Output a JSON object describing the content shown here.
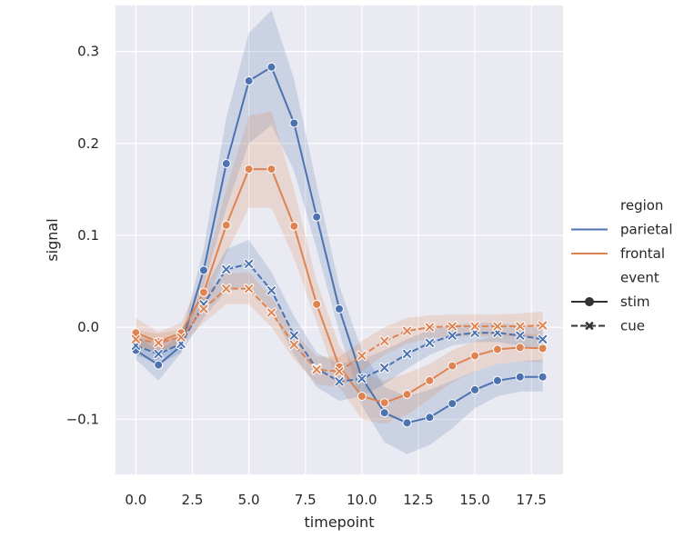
{
  "chart_data": {
    "type": "line",
    "title": "",
    "xlabel": "timepoint",
    "ylabel": "signal",
    "xlim": [
      -0.9,
      18.9
    ],
    "ylim": [
      -0.16,
      0.35
    ],
    "xticks": [
      0.0,
      2.5,
      5.0,
      7.5,
      10.0,
      12.5,
      15.0,
      17.5
    ],
    "xtick_labels": [
      "0.0",
      "2.5",
      "5.0",
      "7.5",
      "10.0",
      "12.5",
      "15.0",
      "17.5"
    ],
    "yticks": [
      -0.1,
      0.0,
      0.1,
      0.2,
      0.3
    ],
    "ytick_labels": [
      "−0.1",
      "0.0",
      "0.1",
      "0.2",
      "0.3"
    ],
    "grid": true,
    "x": [
      0,
      1,
      2,
      3,
      4,
      5,
      6,
      7,
      8,
      9,
      10,
      11,
      12,
      13,
      14,
      15,
      16,
      17,
      18
    ],
    "legend": {
      "placement": "right",
      "hue_title": "region",
      "style_title": "event",
      "entries": [
        {
          "type": "title",
          "label": "region"
        },
        {
          "type": "hue",
          "label": "parietal",
          "color": "#4C72B0"
        },
        {
          "type": "hue",
          "label": "frontal",
          "color": "#DD8452"
        },
        {
          "type": "title",
          "label": "event"
        },
        {
          "type": "style",
          "label": "stim",
          "marker": "circle",
          "dash": "solid"
        },
        {
          "type": "style",
          "label": "cue",
          "marker": "x",
          "dash": "dashed"
        }
      ]
    },
    "series": [
      {
        "name": "parietal-stim",
        "region": "parietal",
        "event": "stim",
        "color": "#4C72B0",
        "marker": "circle",
        "dash": "solid",
        "values": [
          -0.025,
          -0.041,
          -0.02,
          0.062,
          0.178,
          0.268,
          0.283,
          0.222,
          0.12,
          0.02,
          -0.055,
          -0.093,
          -0.104,
          -0.098,
          -0.083,
          -0.068,
          -0.058,
          -0.054,
          -0.054
        ],
        "ci_low": [
          -0.035,
          -0.058,
          -0.028,
          0.045,
          0.13,
          0.2,
          0.22,
          0.17,
          0.085,
          -0.005,
          -0.085,
          -0.125,
          -0.138,
          -0.128,
          -0.11,
          -0.088,
          -0.075,
          -0.07,
          -0.07
        ],
        "ci_high": [
          -0.01,
          -0.025,
          -0.01,
          0.085,
          0.228,
          0.32,
          0.345,
          0.27,
          0.155,
          0.045,
          -0.025,
          -0.065,
          -0.075,
          -0.068,
          -0.058,
          -0.048,
          -0.04,
          -0.037,
          -0.035
        ]
      },
      {
        "name": "frontal-stim",
        "region": "frontal",
        "event": "stim",
        "color": "#DD8452",
        "marker": "circle",
        "dash": "solid",
        "values": [
          -0.006,
          -0.016,
          -0.006,
          0.038,
          0.111,
          0.172,
          0.172,
          0.11,
          0.025,
          -0.043,
          -0.075,
          -0.082,
          -0.073,
          -0.058,
          -0.042,
          -0.031,
          -0.024,
          -0.022,
          -0.023
        ],
        "ci_low": [
          -0.018,
          -0.028,
          -0.016,
          0.02,
          0.08,
          0.13,
          0.13,
          0.075,
          0.005,
          -0.065,
          -0.1,
          -0.105,
          -0.095,
          -0.078,
          -0.06,
          -0.048,
          -0.04,
          -0.037,
          -0.038
        ],
        "ci_high": [
          0.01,
          -0.005,
          0.005,
          0.058,
          0.15,
          0.23,
          0.235,
          0.15,
          0.05,
          -0.02,
          -0.05,
          -0.058,
          -0.05,
          -0.04,
          -0.025,
          -0.015,
          -0.009,
          -0.007,
          -0.008
        ]
      },
      {
        "name": "parietal-cue",
        "region": "parietal",
        "event": "cue",
        "color": "#4C72B0",
        "marker": "x",
        "dash": "dashed",
        "values": [
          -0.02,
          -0.029,
          -0.018,
          0.025,
          0.063,
          0.069,
          0.04,
          -0.009,
          -0.045,
          -0.059,
          -0.056,
          -0.044,
          -0.029,
          -0.017,
          -0.009,
          -0.006,
          -0.006,
          -0.009,
          -0.013
        ],
        "ci_low": [
          -0.03,
          -0.04,
          -0.028,
          0.01,
          0.04,
          0.045,
          0.018,
          -0.03,
          -0.065,
          -0.08,
          -0.075,
          -0.062,
          -0.045,
          -0.03,
          -0.02,
          -0.016,
          -0.016,
          -0.02,
          -0.025
        ],
        "ci_high": [
          -0.008,
          -0.018,
          -0.008,
          0.04,
          0.085,
          0.095,
          0.06,
          0.012,
          -0.028,
          -0.04,
          -0.035,
          -0.025,
          -0.013,
          -0.003,
          0.002,
          0.005,
          0.005,
          0.002,
          -0.001
        ]
      },
      {
        "name": "frontal-cue",
        "region": "frontal",
        "event": "cue",
        "color": "#DD8452",
        "marker": "x",
        "dash": "dashed",
        "values": [
          -0.013,
          -0.017,
          -0.011,
          0.02,
          0.042,
          0.042,
          0.016,
          -0.019,
          -0.046,
          -0.048,
          -0.031,
          -0.015,
          -0.004,
          0.0,
          0.001,
          0.001,
          0.001,
          0.001,
          0.002
        ],
        "ci_low": [
          -0.022,
          -0.026,
          -0.02,
          0.005,
          0.025,
          0.025,
          0.0,
          -0.035,
          -0.062,
          -0.065,
          -0.048,
          -0.03,
          -0.018,
          -0.012,
          -0.01,
          -0.01,
          -0.01,
          -0.01,
          -0.01
        ],
        "ci_high": [
          -0.003,
          -0.007,
          -0.002,
          0.035,
          0.058,
          0.06,
          0.032,
          -0.005,
          -0.032,
          -0.032,
          -0.015,
          0.0,
          0.01,
          0.013,
          0.014,
          0.014,
          0.014,
          0.015,
          0.017
        ]
      }
    ]
  }
}
